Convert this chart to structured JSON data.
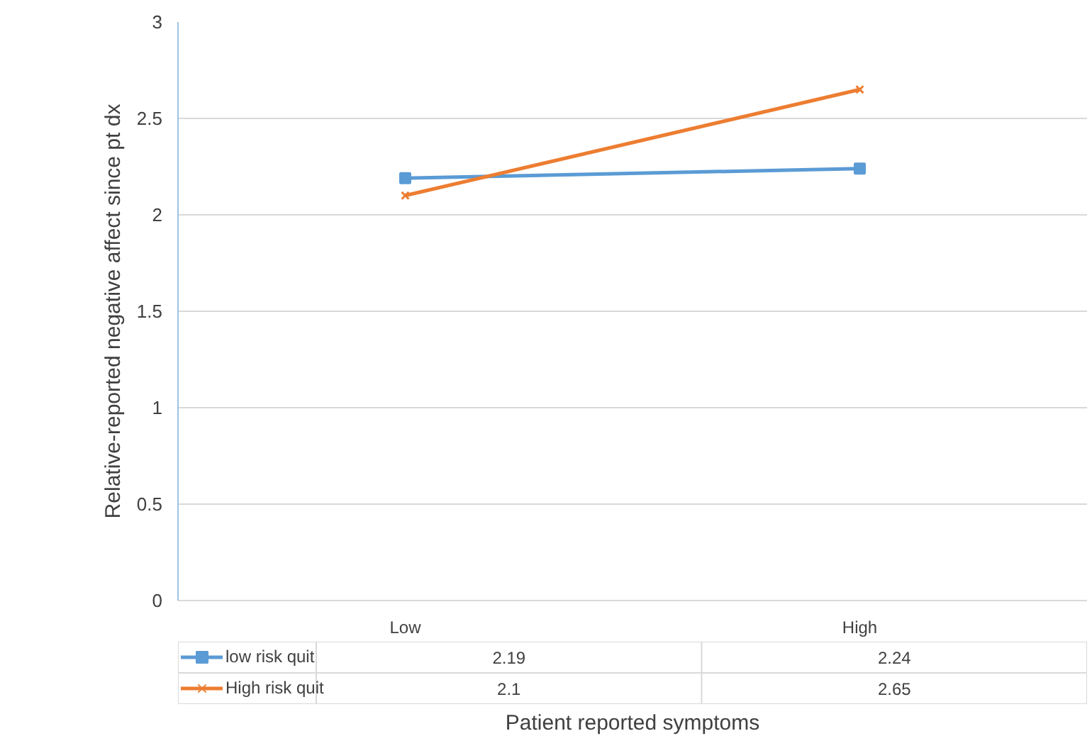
{
  "chart_data": {
    "type": "line",
    "xlabel": "Patient reported symptoms",
    "ylabel": "Relative-reported negative affect since pt dx",
    "categories": [
      "Low",
      "High"
    ],
    "series": [
      {
        "name": "low risk quit",
        "color": "#5b9bd5",
        "marker": "square",
        "values": [
          2.19,
          2.24
        ]
      },
      {
        "name": "High risk quit",
        "color": "#ed7d31",
        "marker": "cross",
        "values": [
          2.1,
          2.65
        ]
      }
    ],
    "ylim": [
      0,
      3
    ],
    "yticks": [
      0,
      0.5,
      1,
      1.5,
      2,
      2.5,
      3
    ],
    "grid": "y",
    "legend": "bottom left",
    "data_labels": true,
    "line_style": "solid"
  }
}
